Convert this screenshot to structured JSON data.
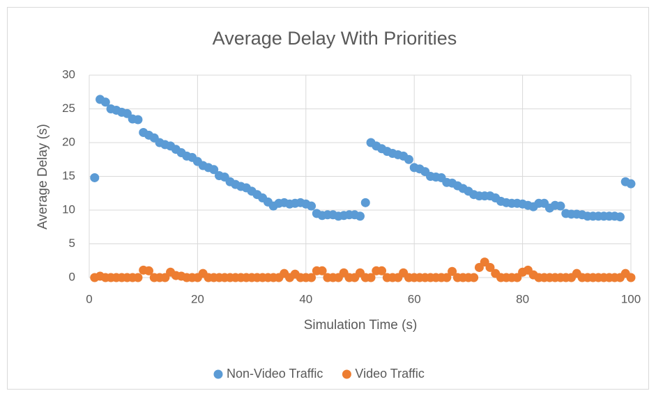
{
  "chart_data": {
    "type": "scatter",
    "title": "Average Delay With Priorities",
    "x_label": "Simulation Time (s)",
    "y_label": "Average Delay (s)",
    "x": [
      1,
      2,
      3,
      4,
      5,
      6,
      7,
      8,
      9,
      10,
      11,
      12,
      13,
      14,
      15,
      16,
      17,
      18,
      19,
      20,
      21,
      22,
      23,
      24,
      25,
      26,
      27,
      28,
      29,
      30,
      31,
      32,
      33,
      34,
      35,
      36,
      37,
      38,
      39,
      40,
      41,
      42,
      43,
      44,
      45,
      46,
      47,
      48,
      49,
      50,
      51,
      52,
      53,
      54,
      55,
      56,
      57,
      58,
      59,
      60,
      61,
      62,
      63,
      64,
      65,
      66,
      67,
      68,
      69,
      70,
      71,
      72,
      73,
      74,
      75,
      76,
      77,
      78,
      79,
      80,
      81,
      82,
      83,
      84,
      85,
      86,
      87,
      88,
      89,
      90,
      91,
      92,
      93,
      94,
      95,
      96,
      97,
      98,
      99,
      100
    ],
    "series": [
      {
        "name": "Non-Video Traffic",
        "color": "#5b9bd5",
        "values": [
          14.8,
          26.4,
          26,
          25,
          24.8,
          24.5,
          24.3,
          23.5,
          23.4,
          21.5,
          21.1,
          20.7,
          20,
          19.7,
          19.5,
          19,
          18.5,
          18,
          17.8,
          17.2,
          16.6,
          16.3,
          16,
          15.1,
          14.9,
          14.2,
          13.8,
          13.5,
          13.3,
          12.8,
          12.3,
          11.8,
          11.2,
          10.6,
          11,
          11.1,
          10.9,
          11,
          11.1,
          10.9,
          10.6,
          9.5,
          9.2,
          9.3,
          9.3,
          9.1,
          9.2,
          9.3,
          9.3,
          9.1,
          11.1,
          20,
          19.5,
          19.1,
          18.7,
          18.4,
          18.2,
          18,
          17.5,
          16.3,
          16.1,
          15.7,
          15,
          14.9,
          14.8,
          14.1,
          14,
          13.6,
          13.2,
          12.8,
          12.3,
          12.1,
          12.1,
          12.1,
          11.8,
          11.3,
          11.1,
          11,
          11,
          10.9,
          10.7,
          10.5,
          11,
          11,
          10.3,
          10.7,
          10.6,
          9.5,
          9.4,
          9.4,
          9.3,
          9.1,
          9.1,
          9.1,
          9.1,
          9.1,
          9.1,
          9,
          14.2,
          13.9
        ]
      },
      {
        "name": "Video Traffic",
        "color": "#ed7d31",
        "values": [
          0,
          0.2,
          0,
          0,
          0,
          0,
          0,
          0,
          0,
          1.1,
          1,
          0,
          0,
          0,
          0.8,
          0.3,
          0.2,
          0,
          0,
          0,
          0.6,
          0,
          0,
          0,
          0,
          0,
          0,
          0,
          0,
          0,
          0,
          0,
          0,
          0,
          0,
          0.6,
          0,
          0.5,
          0,
          0,
          0,
          1,
          1,
          0,
          0,
          0,
          0.7,
          0,
          0,
          0.7,
          0,
          0,
          1,
          1,
          0,
          0,
          0,
          0.7,
          0,
          0,
          0,
          0,
          0,
          0,
          0,
          0,
          0.9,
          0,
          0,
          0,
          0,
          1.5,
          2.3,
          1.5,
          0.6,
          0,
          0,
          0,
          0,
          0.8,
          1.1,
          0.4,
          0,
          0,
          0,
          0,
          0,
          0,
          0,
          0.6,
          0,
          0,
          0,
          0,
          0,
          0,
          0,
          0,
          0.6,
          0
        ]
      }
    ],
    "xlim": [
      0,
      100
    ],
    "xticks": [
      0,
      20,
      40,
      60,
      80,
      100
    ],
    "ylim": [
      0,
      30
    ],
    "yticks": [
      0,
      5,
      10,
      15,
      20,
      25,
      30
    ],
    "grid": true,
    "legend": "bottom"
  }
}
